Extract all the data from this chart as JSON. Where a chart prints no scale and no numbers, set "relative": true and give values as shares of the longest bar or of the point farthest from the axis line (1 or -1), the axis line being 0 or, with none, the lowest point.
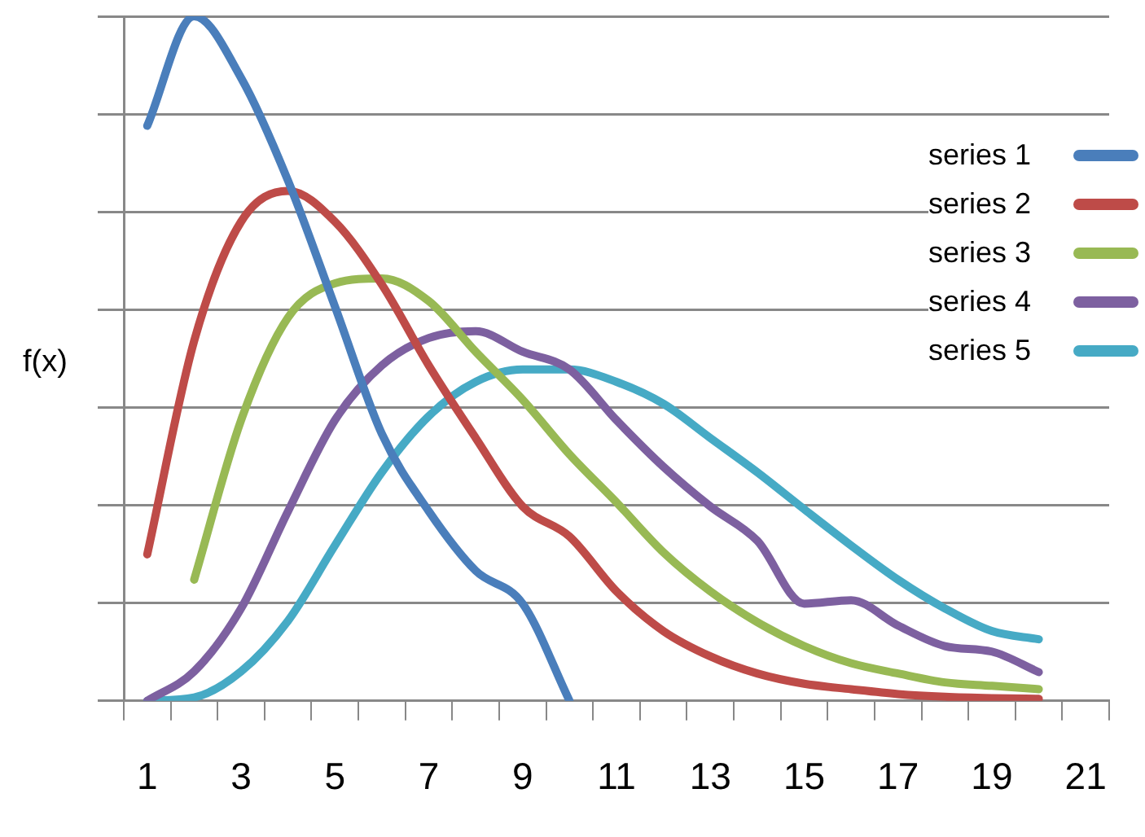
{
  "chart_data": {
    "type": "line",
    "ylabel": "f(x)",
    "relative": true,
    "grid": "y",
    "legend": "top right",
    "marker": "none",
    "line_style": "solid",
    "x": [
      1,
      2,
      3,
      4,
      5,
      6,
      7,
      8,
      9,
      10,
      11,
      12,
      13,
      14,
      15,
      16,
      17,
      18,
      19,
      20
    ],
    "xlim": [
      0.5,
      21.5
    ],
    "xticks": [
      {
        "value": 0.5,
        "label": null
      },
      1,
      {
        "value": 1.5,
        "label": null
      },
      {
        "value": 2.5,
        "label": null
      },
      3,
      {
        "value": 3.5,
        "label": null
      },
      {
        "value": 4.5,
        "label": null
      },
      5,
      {
        "value": 5.5,
        "label": null
      },
      {
        "value": 6.5,
        "label": null
      },
      7,
      {
        "value": 7.5,
        "label": null
      },
      {
        "value": 8.5,
        "label": null
      },
      9,
      {
        "value": 9.5,
        "label": null
      },
      {
        "value": 10.5,
        "label": null
      },
      11,
      {
        "value": 11.5,
        "label": null
      },
      {
        "value": 12.5,
        "label": null
      },
      13,
      {
        "value": 13.5,
        "label": null
      },
      {
        "value": 14.5,
        "label": null
      },
      15,
      {
        "value": 15.5,
        "label": null
      },
      {
        "value": 16.5,
        "label": null
      },
      17,
      {
        "value": 17.5,
        "label": null
      },
      {
        "value": 18.5,
        "label": null
      },
      19,
      {
        "value": 19.5,
        "label": null
      },
      {
        "value": 20.5,
        "label": null
      },
      21,
      {
        "value": 21.5,
        "label": null
      }
    ],
    "series": [
      {
        "name": "series 1",
        "color": "#4a7ebb",
        "values": [
          0.84,
          1,
          0.91,
          0.76,
          0.576,
          0.39,
          0.277,
          0.19,
          0.142,
          0,
          null,
          null,
          null,
          null,
          null,
          null,
          null,
          null,
          null,
          null
        ]
      },
      {
        "name": "series 2",
        "color": "#be4b48",
        "values": [
          0.214,
          0.526,
          0.7,
          0.745,
          0.7,
          0.608,
          0.49,
          0.384,
          0.284,
          0.24,
          0.16,
          0.102,
          0.065,
          0.04,
          0.025,
          0.017,
          0.01,
          0.006,
          0.004,
          0.003
        ]
      },
      {
        "name": "series 3",
        "color": "#98b954",
        "values": [
          null,
          0.177,
          0.41,
          0.56,
          0.61,
          0.617,
          0.584,
          0.51,
          0.44,
          0.36,
          0.29,
          0.217,
          0.16,
          0.115,
          0.08,
          0.055,
          0.04,
          0.027,
          0.022,
          0.017
        ]
      },
      {
        "name": "series 4",
        "color": "#7d60a0",
        "values": [
          0,
          0.043,
          0.135,
          0.277,
          0.41,
          0.49,
          0.53,
          0.54,
          0.51,
          0.484,
          0.41,
          0.342,
          0.284,
          0.234,
          0.142,
          0.147,
          0.11,
          0.08,
          0.072,
          0.042
        ]
      },
      {
        "name": "series 5",
        "color": "#46aac5",
        "values": [
          0,
          0.005,
          0.043,
          0.117,
          0.227,
          0.334,
          0.416,
          0.466,
          0.484,
          0.484,
          0.466,
          0.434,
          0.384,
          0.334,
          0.28,
          0.227,
          0.177,
          0.135,
          0.102,
          0.09
        ]
      }
    ]
  }
}
